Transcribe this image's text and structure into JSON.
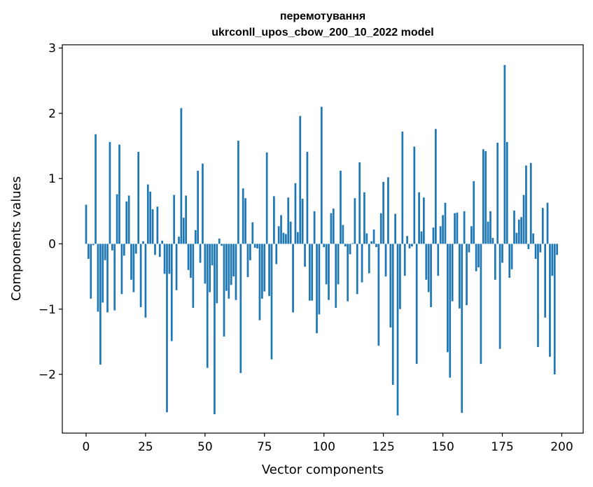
{
  "chart_data": {
    "type": "bar",
    "title": "перемотування",
    "subtitle": "ukrconll_upos_cbow_200_10_2022 model",
    "xlabel": "Vector components",
    "ylabel": "Components values",
    "xlim": [
      -10,
      209
    ],
    "ylim": [
      -2.9,
      3.05
    ],
    "xticks": [
      0,
      25,
      50,
      75,
      100,
      125,
      150,
      175,
      200
    ],
    "yticks": [
      -2,
      -1,
      0,
      1,
      2,
      3
    ],
    "xtick_labels": [
      "0",
      "25",
      "50",
      "75",
      "100",
      "125",
      "150",
      "175",
      "200"
    ],
    "ytick_labels": [
      "−2",
      "−1",
      "0",
      "1",
      "2",
      "3"
    ],
    "bar_color": "#1f77b4",
    "grid": false,
    "values": [
      0.6,
      -0.23,
      -0.84,
      -0.02,
      1.68,
      -1.04,
      -1.85,
      -0.9,
      -0.25,
      -1.05,
      1.56,
      -0.1,
      -1.02,
      0.76,
      1.52,
      -0.77,
      -0.18,
      0.65,
      0.74,
      -0.55,
      -0.74,
      -0.15,
      1.41,
      -0.97,
      0.04,
      -1.13,
      0.91,
      0.8,
      0.53,
      -0.17,
      0.57,
      -0.2,
      0.05,
      -0.46,
      -2.58,
      -0.46,
      -1.49,
      0.75,
      -0.71,
      0.11,
      2.08,
      0.4,
      0.74,
      -0.4,
      -0.52,
      -0.98,
      0.21,
      1.12,
      -0.29,
      1.23,
      -0.61,
      -1.9,
      -0.74,
      -0.33,
      -2.61,
      -0.91,
      0.08,
      -0.03,
      -1.42,
      -0.72,
      -0.84,
      -0.63,
      -0.5,
      -0.86,
      1.58,
      -1.98,
      0.85,
      0.7,
      -0.51,
      -0.25,
      0.33,
      -0.06,
      -0.07,
      -1.17,
      -0.84,
      -0.73,
      1.4,
      -0.8,
      -1.77,
      0.73,
      -0.31,
      0.27,
      0.44,
      0.17,
      0.15,
      0.71,
      0.34,
      -1.05,
      0.93,
      0.18,
      1.96,
      0.69,
      -0.35,
      1.41,
      -0.87,
      -0.87,
      0.5,
      -1.37,
      -1.08,
      2.1,
      -0.05,
      -0.62,
      -0.86,
      0.47,
      0.54,
      -0.98,
      -0.62,
      1.12,
      0.29,
      -0.04,
      -0.88,
      -0.16,
      0.01,
      0.7,
      -0.77,
      1.25,
      -0.59,
      0.79,
      0.16,
      -0.45,
      0.04,
      0.22,
      -0.05,
      -1.56,
      0.47,
      0.95,
      -0.5,
      1.02,
      -1.28,
      -2.16,
      0.46,
      -2.63,
      -1.0,
      1.72,
      -0.49,
      0.12,
      -0.07,
      -0.04,
      1.49,
      -1.84,
      0.79,
      0.19,
      0.71,
      -0.55,
      -0.74,
      -0.97,
      0.25,
      1.76,
      -0.49,
      0.27,
      0.44,
      0.63,
      -1.66,
      -2.05,
      -0.88,
      0.47,
      0.48,
      -0.99,
      -2.59,
      0.5,
      -0.94,
      -0.13,
      0.27,
      0.96,
      -0.42,
      -0.36,
      -1.84,
      1.45,
      1.42,
      0.34,
      0.5,
      0.09,
      -0.55,
      1.55,
      -1.61,
      -0.29,
      2.74,
      1.56,
      -0.52,
      -0.39,
      0.51,
      0.17,
      0.37,
      0.41,
      0.75,
      1.2,
      -0.08,
      1.24,
      0.16,
      -0.23,
      -1.58,
      -0.13,
      0.55,
      -1.13,
      0.63,
      -1.73,
      -0.49,
      -2.0,
      -0.17
    ]
  }
}
